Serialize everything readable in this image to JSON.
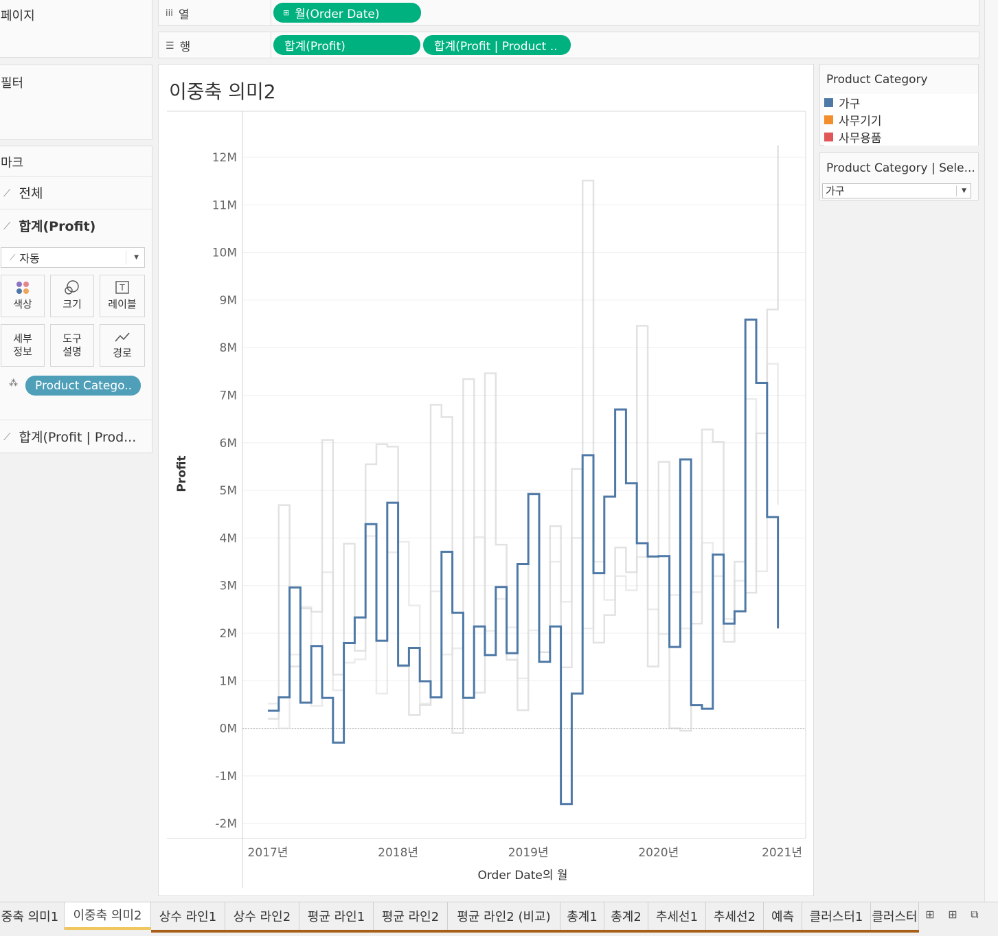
{
  "left": {
    "pages_title": "페이지",
    "filters_title": "필터",
    "marks_title": "마크",
    "marks_cards": [
      "전체",
      "합계(Profit)"
    ],
    "mark_type": "자동",
    "buttons": [
      {
        "label": "색상",
        "icon": "color-dots-icon"
      },
      {
        "label": "크기",
        "icon": "size-circles-icon"
      },
      {
        "label": "레이블",
        "icon": "label-t-icon"
      },
      {
        "label": "세부\n정보",
        "icon": "detail-icon"
      },
      {
        "label": "도구\n설명",
        "icon": "tooltip-icon"
      },
      {
        "label": "경로",
        "icon": "path-line-icon"
      }
    ],
    "color_pill": "Product Catego..",
    "second_card": "합계(Profit | Prod..."
  },
  "shelves": {
    "columns_label": "열",
    "rows_label": "행",
    "columns_pill": "월(Order Date)",
    "rows_pills": [
      "합계(Profit)",
      "합계(Profit | Product .."
    ]
  },
  "viz": {
    "title": "이중축 의미2"
  },
  "legend": {
    "title": "Product Category",
    "items": [
      {
        "label": "가구",
        "color": "#4e79a7"
      },
      {
        "label": "사무기기",
        "color": "#f28e2b"
      },
      {
        "label": "사무용품",
        "color": "#e15759"
      }
    ],
    "param_title": "Product Category | Sele...",
    "param_value": "가구"
  },
  "tabs": [
    "중축 의미1",
    "이중축 의미2",
    "상수 라인1",
    "상수 라인2",
    "평균 라인1",
    "평균 라인2",
    "평균 라인2 (비교)",
    "총계1",
    "총계2",
    "추세선1",
    "추세선2",
    "예측",
    "클러스터1",
    "클러스터"
  ],
  "active_tab": 1,
  "chart_data": {
    "type": "line",
    "step": true,
    "ylabel": "Profit",
    "xlabel": "Order Date의 월",
    "ylim": [
      -2.3,
      12.7
    ],
    "y_ticks": [
      "12M",
      "11M",
      "10M",
      "9M",
      "8M",
      "7M",
      "6M",
      "5M",
      "4M",
      "3M",
      "2M",
      "1M",
      "0M",
      "-1M",
      "-2M"
    ],
    "y_tick_values": [
      12,
      11,
      10,
      9,
      8,
      7,
      6,
      5,
      4,
      3,
      2,
      1,
      0,
      -1,
      -2
    ],
    "x_ticks": [
      "2017년",
      "2018년",
      "2019년",
      "2020년",
      "2021년"
    ],
    "x_tick_values": [
      0,
      12,
      24,
      36,
      48
    ],
    "units": "M",
    "grid": true,
    "series": [
      {
        "name": "가구",
        "color": "#4e79a7",
        "highlighted": true,
        "values": [
          0.37,
          0.65,
          2.96,
          0.54,
          1.73,
          0.64,
          -0.3,
          1.79,
          2.33,
          4.29,
          1.84,
          4.74,
          1.32,
          1.69,
          0.99,
          0.65,
          3.71,
          2.43,
          0.64,
          2.14,
          1.54,
          2.97,
          1.58,
          3.45,
          4.92,
          1.4,
          2.14,
          -1.59,
          0.73,
          5.74,
          3.26,
          4.87,
          6.7,
          5.15,
          3.89,
          3.61,
          3.62,
          1.71,
          5.65,
          0.49,
          0.41,
          3.65,
          2.2,
          2.46,
          8.59,
          7.26,
          4.44,
          2.1
        ]
      },
      {
        "name": "사무기기",
        "color": "#cfcfcf",
        "highlighted": false,
        "values": [
          0.2,
          4.69,
          1.3,
          2.52,
          2.45,
          6.06,
          1.13,
          3.88,
          1.63,
          5.55,
          5.97,
          5.92,
          1.3,
          0.28,
          0.49,
          6.8,
          6.54,
          -0.1,
          7.34,
          0.75,
          7.46,
          3.86,
          1.44,
          0.38,
          4.95,
          1.6,
          4.25,
          1.28,
          5.45,
          11.51,
          1.8,
          2.38,
          3.8,
          3.28,
          8.46,
          1.3,
          5.6,
          0,
          -0.05,
          2.2,
          6.28,
          6.02,
          1.82,
          3.5,
          2.85,
          6.2,
          8.8,
          12.25
        ]
      },
      {
        "name": "사무용품",
        "color": "#dedede",
        "highlighted": false,
        "values": [
          0.52,
          0,
          1.55,
          2.55,
          0.47,
          3.28,
          0.8,
          1.38,
          1.45,
          4.04,
          0.73,
          3.7,
          3.92,
          2.58,
          0.52,
          2.88,
          1.55,
          1.68,
          0.65,
          4.02,
          2.05,
          2.72,
          2.12,
          1.05,
          2.06,
          1.6,
          3.5,
          2.66,
          4.0,
          2.1,
          3.5,
          2.7,
          3.2,
          2.9,
          3.6,
          2.5,
          1.98,
          2.8,
          2.1,
          2.86,
          3.9,
          3.2,
          2.3,
          3.1,
          6.92,
          3.3,
          7.66,
          4.7
        ]
      }
    ]
  }
}
